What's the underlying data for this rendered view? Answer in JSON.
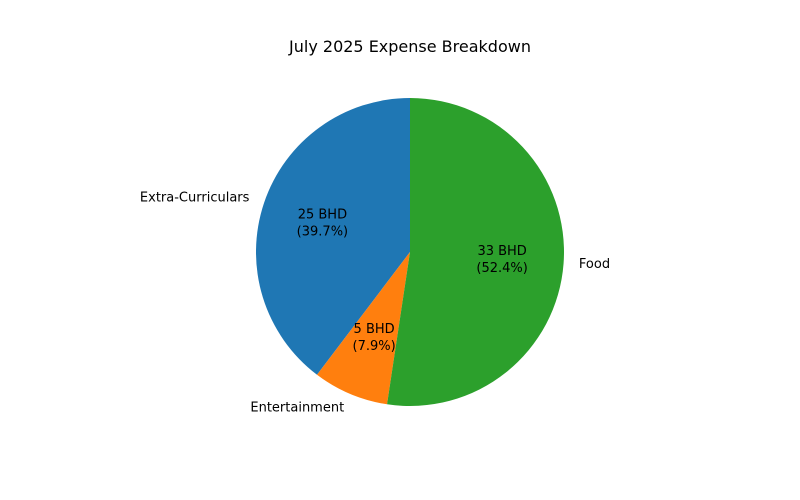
{
  "chart_data": {
    "type": "pie",
    "title": "July 2025 Expense Breakdown",
    "categories": [
      "Extra-Curriculars",
      "Entertainment",
      "Food"
    ],
    "values": [
      25,
      5,
      33
    ],
    "value_labels": [
      "25 BHD",
      "5 BHD",
      "33 BHD"
    ],
    "percent_labels": [
      "(39.7%)",
      "(7.9%)",
      "(52.4%)"
    ],
    "colors": [
      "#1f77b4",
      "#ff7f0e",
      "#2ca02c"
    ],
    "start_angle_deg": 90,
    "direction": "counterclockwise",
    "legend": "none"
  }
}
